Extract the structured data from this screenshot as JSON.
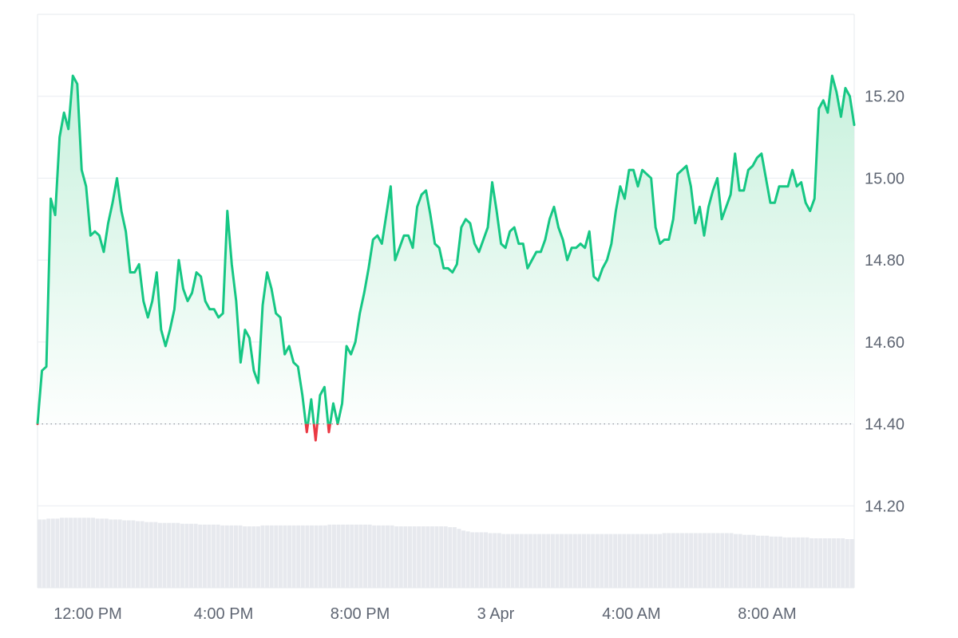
{
  "chart_data": {
    "type": "line",
    "xlabel": "",
    "ylabel": "",
    "baseline": 14.4,
    "ylim": [
      14.0,
      15.4
    ],
    "x_ticks": [
      "12:00 PM",
      "4:00 PM",
      "8:00 PM",
      "3 Apr",
      "4:00 AM",
      "8:00 AM"
    ],
    "y_ticks": [
      "14.20",
      "14.40",
      "14.60",
      "14.80",
      "15.00",
      "15.20"
    ],
    "grid": true,
    "colors": {
      "up_line": "#16c784",
      "down_line": "#ea3943",
      "area_top": "#c8f1dd",
      "area_bottom": "#ffffff",
      "volume": "#e7e9ee",
      "grid": "#e9ecf1",
      "baseline": "#8a8f98"
    },
    "series": [
      {
        "values": [
          14.4,
          14.53,
          14.54,
          14.95,
          14.91,
          15.1,
          15.16,
          15.12,
          15.25,
          15.23,
          15.02,
          14.98,
          14.86,
          14.87,
          14.86,
          14.82,
          14.89,
          14.94,
          15.0,
          14.92,
          14.87,
          14.77,
          14.77,
          14.79,
          14.7,
          14.66,
          14.7,
          14.77,
          14.63,
          14.59,
          14.63,
          14.68,
          14.8,
          14.73,
          14.7,
          14.72,
          14.77,
          14.76,
          14.7,
          14.68,
          14.68,
          14.66,
          14.67,
          14.92,
          14.79,
          14.7,
          14.55,
          14.63,
          14.61,
          14.53,
          14.5,
          14.69,
          14.77,
          14.73,
          14.67,
          14.66,
          14.57,
          14.59,
          14.55,
          14.54,
          14.47,
          14.38,
          14.46,
          14.36,
          14.47,
          14.49,
          14.38,
          14.45,
          14.4,
          14.45,
          14.59,
          14.57,
          14.6,
          14.67,
          14.72,
          14.78,
          14.85,
          14.86,
          14.84,
          14.91,
          14.98,
          14.8,
          14.83,
          14.86,
          14.86,
          14.83,
          14.93,
          14.96,
          14.97,
          14.91,
          14.84,
          14.83,
          14.78,
          14.78,
          14.77,
          14.79,
          14.88,
          14.9,
          14.89,
          14.84,
          14.82,
          14.85,
          14.88,
          14.99,
          14.92,
          14.84,
          14.83,
          14.87,
          14.88,
          14.84,
          14.84,
          14.78,
          14.8,
          14.82,
          14.82,
          14.85,
          14.9,
          14.93,
          14.88,
          14.85,
          14.8,
          14.83,
          14.83,
          14.84,
          14.83,
          14.87,
          14.76,
          14.75,
          14.78,
          14.8,
          14.84,
          14.92,
          14.98,
          14.95,
          15.02,
          15.02,
          14.98,
          15.02,
          15.01,
          15.0,
          14.88,
          14.84,
          14.85,
          14.85,
          14.9,
          15.01,
          15.02,
          15.03,
          14.98,
          14.89,
          14.93,
          14.86,
          14.93,
          14.97,
          15.0,
          14.9,
          14.93,
          14.96,
          15.06,
          14.97,
          14.97,
          15.02,
          15.03,
          15.05,
          15.06,
          15.0,
          14.94,
          14.94,
          14.98,
          14.98,
          14.98,
          15.02,
          14.98,
          14.99,
          14.94,
          14.92,
          14.95,
          15.17,
          15.19,
          15.16,
          15.25,
          15.21,
          15.15,
          15.22,
          15.2,
          15.13
        ]
      }
    ],
    "volume": [
      0.8,
      0.8,
      0.81,
      0.81,
      0.81,
      0.82,
      0.82,
      0.82,
      0.82,
      0.82,
      0.82,
      0.82,
      0.82,
      0.81,
      0.81,
      0.81,
      0.8,
      0.8,
      0.8,
      0.79,
      0.79,
      0.79,
      0.78,
      0.78,
      0.77,
      0.77,
      0.77,
      0.76,
      0.76,
      0.76,
      0.76,
      0.76,
      0.75,
      0.75,
      0.75,
      0.75,
      0.74,
      0.74,
      0.74,
      0.74,
      0.74,
      0.73,
      0.73,
      0.73,
      0.73,
      0.73,
      0.72,
      0.72,
      0.72,
      0.72,
      0.73,
      0.73,
      0.73,
      0.73,
      0.73,
      0.73,
      0.73,
      0.73,
      0.73,
      0.73,
      0.73,
      0.73,
      0.73,
      0.73,
      0.73,
      0.74,
      0.74,
      0.74,
      0.74,
      0.74,
      0.74,
      0.74,
      0.74,
      0.74,
      0.74,
      0.73,
      0.73,
      0.73,
      0.73,
      0.73,
      0.72,
      0.72,
      0.72,
      0.72,
      0.72,
      0.72,
      0.72,
      0.72,
      0.72,
      0.72,
      0.72,
      0.72,
      0.71,
      0.71,
      0.69,
      0.67,
      0.66,
      0.65,
      0.65,
      0.65,
      0.65,
      0.64,
      0.64,
      0.64,
      0.63,
      0.63,
      0.63,
      0.63,
      0.63,
      0.63,
      0.63,
      0.63,
      0.63,
      0.63,
      0.63,
      0.63,
      0.63,
      0.63,
      0.63,
      0.63,
      0.63,
      0.63,
      0.63,
      0.63,
      0.63,
      0.63,
      0.63,
      0.63,
      0.63,
      0.63,
      0.63,
      0.63,
      0.63,
      0.63,
      0.63,
      0.63,
      0.63,
      0.63,
      0.63,
      0.63,
      0.64,
      0.64,
      0.64,
      0.64,
      0.64,
      0.64,
      0.64,
      0.64,
      0.64,
      0.64,
      0.64,
      0.64,
      0.64,
      0.64,
      0.64,
      0.64,
      0.63,
      0.63,
      0.62,
      0.62,
      0.62,
      0.61,
      0.61,
      0.61,
      0.6,
      0.6,
      0.6,
      0.59,
      0.59,
      0.59,
      0.59,
      0.59,
      0.59,
      0.58,
      0.58,
      0.58,
      0.58,
      0.58,
      0.58,
      0.58,
      0.58,
      0.57,
      0.57
    ]
  }
}
